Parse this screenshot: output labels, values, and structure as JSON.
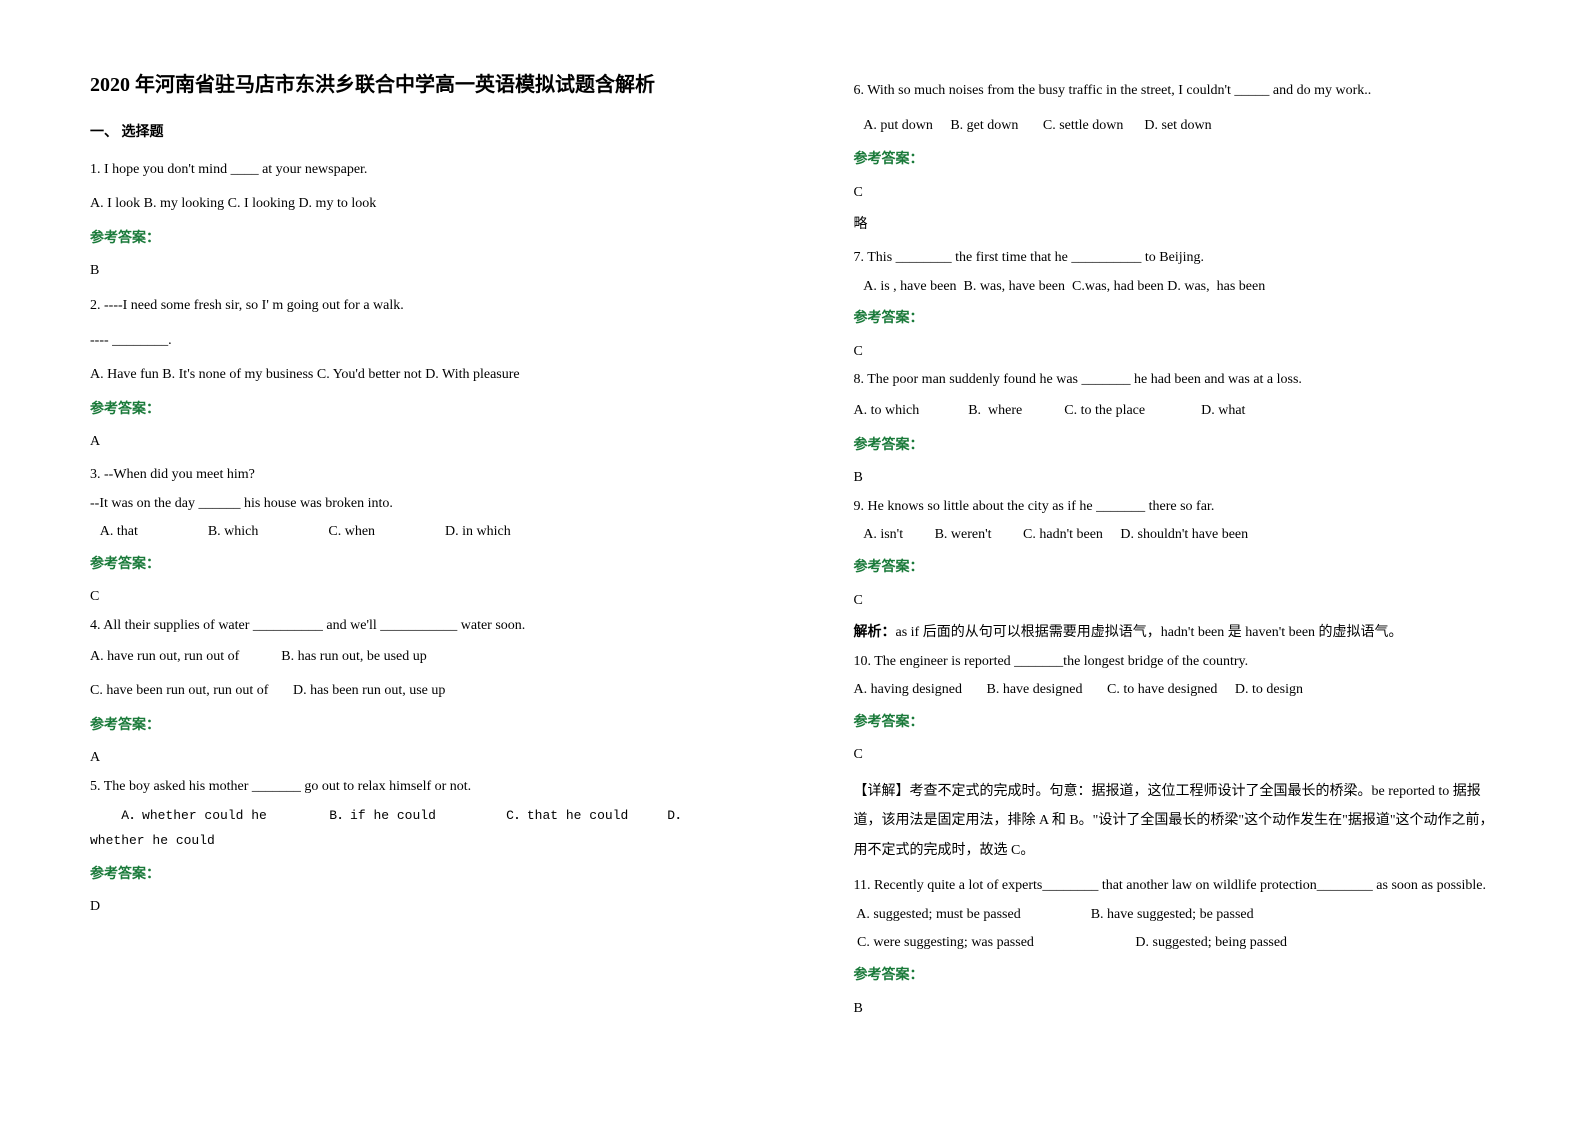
{
  "title": "2020 年河南省驻马店市东洪乡联合中学高一英语模拟试题含解析",
  "section1": "一、 选择题",
  "answer_label": "参考答案：",
  "omit": "略",
  "analysis_label": "解析：",
  "detail_label": "【详解】",
  "q1": {
    "stem": "1. I hope you don't mind ____ at your newspaper.",
    "opts": "A. I look    B. my looking    C. I looking    D. my to look",
    "ans": "B"
  },
  "q2": {
    "stem1": "2. ----I need some fresh sir, so I' m going out for a walk.",
    "stem2": "---- ________.",
    "opts": "A. Have fun     B. It's none of my business   C. You'd better not   D. With pleasure",
    "ans": "A"
  },
  "q3": {
    "stem1": "3. --When did you meet him?",
    "stem2": "   --It was on the day ______ his house was broken into.",
    "opts": "   A. that                    B. which                    C. when                    D. in which",
    "ans": "C"
  },
  "q4": {
    "stem": "4. All their supplies of water __________ and we'll ___________ water soon.",
    "opts1": "A. have run out, run out of            B. has run out, be used up",
    "opts2": "C. have been run out, run out of       D. has been run out, use up",
    "ans": "A"
  },
  "q5": {
    "stem": "5. The boy asked his mother _______ go out to relax himself or not.",
    "opts": "    A．whether could he        B．if he could         C．that he could     D．whether he could",
    "ans": "D"
  },
  "q6": {
    "stem": "6. With so much noises from the busy traffic in the street, I couldn't _____ and do my work..",
    "opts": "   A. put down     B. get down       C. settle down      D. set down",
    "ans": "C"
  },
  "q7": {
    "stem": "7. This ________ the first time that he __________ to Beijing.",
    "opts": "   A. is , have been  B. was, have been  C.was, had been D. was,  has been",
    "ans": "C"
  },
  "q8": {
    "stem": "8. The poor man suddenly found he was _______ he had been and was at a loss.",
    "opts": "A. to which              B.  where            C. to the place                D. what",
    "ans": "B"
  },
  "q9": {
    "stem": "9. He knows so little about the city as if he _______ there so far.",
    "opts": "   A. isn't         B. weren't         C. hadn't been     D. shouldn't have been",
    "ans": "C",
    "analysis": "as if 后面的从句可以根据需要用虚拟语气，hadn't been 是 haven't been 的虚拟语气。"
  },
  "q10": {
    "stem": "10. The engineer is reported _______the longest bridge of the country.",
    "opts": "A. having designed       B. have designed       C. to have designed     D. to design",
    "ans": "C",
    "detail": "考查不定式的完成时。句意：据报道，这位工程师设计了全国最长的桥梁。be reported to 据报道，该用法是固定用法，排除 A 和 B。\"设计了全国最长的桥梁\"这个动作发生在\"据报道\"这个动作之前，用不定式的完成时，故选 C。"
  },
  "q11": {
    "stem": "11. Recently quite a lot of experts________ that another law on wildlife protection________ as soon as possible.",
    "opts1": " A. suggested; must be passed                    B. have suggested; be passed",
    "opts2": " C. were suggesting; was passed                             D. suggested; being passed",
    "ans": "B"
  }
}
